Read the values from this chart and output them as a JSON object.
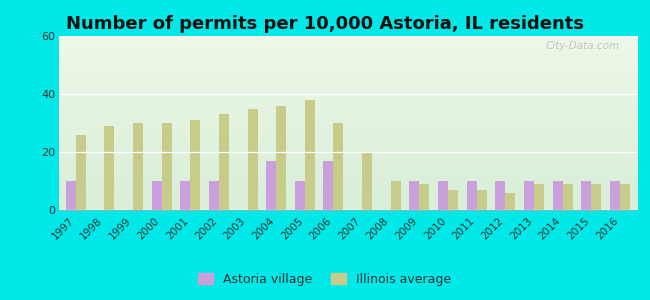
{
  "title": "Number of permits per 10,000 Astoria, IL residents",
  "years": [
    1997,
    1998,
    1999,
    2000,
    2001,
    2002,
    2003,
    2004,
    2005,
    2006,
    2007,
    2008,
    2009,
    2010,
    2011,
    2012,
    2013,
    2014,
    2015,
    2016
  ],
  "astoria": [
    10,
    0,
    0,
    10,
    10,
    10,
    0,
    17,
    10,
    17,
    0,
    0,
    10,
    10,
    10,
    10,
    10,
    10,
    10,
    10
  ],
  "illinois": [
    26,
    29,
    30,
    30,
    31,
    33,
    35,
    36,
    38,
    30,
    20,
    10,
    9,
    7,
    7,
    6,
    9,
    9,
    9,
    9
  ],
  "astoria_color": "#c9a0dc",
  "illinois_color": "#c8cc8a",
  "bg_color": "#00e8e8",
  "plot_bg_start": "#eef8e8",
  "plot_bg_end": "#d8eed8",
  "ylabel_ticks": [
    0,
    20,
    40,
    60
  ],
  "ylim": [
    0,
    60
  ],
  "bar_width": 0.35,
  "legend_astoria": "Astoria village",
  "legend_illinois": "Illinois average",
  "title_fontsize": 13,
  "watermark": "City-Data.com"
}
